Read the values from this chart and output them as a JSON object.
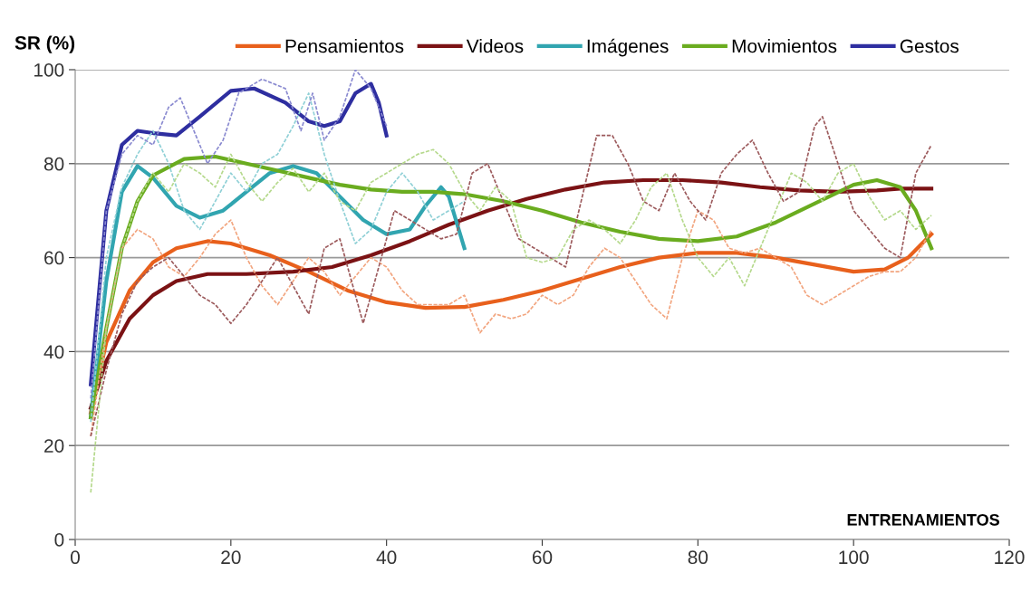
{
  "chart_data": {
    "type": "line",
    "xlabel": "ENTRENAMIENTOS",
    "ylabel": "SR (%)",
    "xlim": [
      0,
      120
    ],
    "xticks": [
      0,
      20,
      40,
      60,
      80,
      100,
      120
    ],
    "ylim": [
      0,
      100
    ],
    "yticks": [
      0,
      20,
      40,
      60,
      80,
      100
    ],
    "grid": "y",
    "legend": "top",
    "marker": "none",
    "series": [
      {
        "name": "Pensamientos",
        "color": "#e8601c",
        "line_style": "solid",
        "x": [
          2,
          4,
          7,
          10,
          13,
          17,
          20,
          25,
          30,
          35,
          40,
          45,
          50,
          55,
          60,
          65,
          70,
          75,
          80,
          85,
          90,
          95,
          100,
          104,
          107,
          110
        ],
        "values": [
          27,
          42,
          53,
          59,
          62,
          63.5,
          63,
          60.5,
          57,
          53,
          50.5,
          49.3,
          49.5,
          51,
          53,
          55.5,
          58,
          60,
          61,
          61,
          60,
          58.5,
          57,
          57.5,
          60,
          65
        ]
      },
      {
        "name": "Videos",
        "color": "#7b1214",
        "line_style": "solid",
        "x": [
          2,
          4,
          7,
          10,
          13,
          17,
          22,
          28,
          33,
          38,
          43,
          48,
          53,
          58,
          63,
          68,
          73,
          78,
          83,
          88,
          93,
          98,
          103,
          106,
          110
        ],
        "values": [
          28,
          38,
          47,
          52,
          55,
          56.5,
          56.5,
          57,
          58,
          60.5,
          63.5,
          67,
          70,
          72.5,
          74.5,
          76,
          76.5,
          76.5,
          76,
          75,
          74.3,
          74,
          74.3,
          74.7,
          74.7
        ]
      },
      {
        "name": "Imágenes",
        "color": "#31a5b0",
        "line_style": "solid",
        "x": [
          2,
          4,
          6,
          8,
          10,
          13,
          16,
          19,
          22,
          25,
          28,
          31,
          34,
          37,
          40,
          43,
          45,
          47,
          48,
          50
        ],
        "values": [
          26,
          55,
          74,
          79.5,
          77,
          71,
          68.5,
          70,
          74,
          78,
          79.5,
          78,
          73,
          68,
          65,
          66,
          71,
          75,
          73,
          62
        ]
      },
      {
        "name": "Movimientos",
        "color": "#6aac1f",
        "line_style": "solid",
        "x": [
          2,
          4,
          6,
          8,
          10,
          14,
          18,
          22,
          26,
          30,
          34,
          38,
          42,
          46,
          50,
          55,
          60,
          65,
          70,
          75,
          80,
          85,
          90,
          95,
          100,
          103,
          106,
          108,
          110
        ],
        "values": [
          26,
          45,
          62,
          72,
          77.5,
          81,
          81.5,
          80,
          78.5,
          77,
          75.5,
          74.5,
          74,
          74,
          73.5,
          72,
          70,
          67.5,
          65.5,
          64,
          63.5,
          64.5,
          67.5,
          71.5,
          75.5,
          76.5,
          75,
          70,
          62
        ]
      },
      {
        "name": "Gestos",
        "color": "#2e2ea0",
        "line_style": "solid",
        "x": [
          2,
          4,
          6,
          8,
          10,
          13,
          16,
          20,
          23,
          27,
          30,
          32,
          34,
          36,
          38,
          39,
          40
        ],
        "values": [
          33,
          70,
          84,
          87,
          86.5,
          86,
          90,
          95.5,
          96,
          93,
          89,
          88,
          89,
          95,
          97,
          93,
          86
        ]
      },
      {
        "color": "#f2a57f",
        "line_style": "dashed",
        "x": [
          2,
          4,
          6,
          8,
          10,
          12,
          14,
          16,
          18,
          20,
          22,
          24,
          26,
          28,
          30,
          32,
          34,
          36,
          38,
          40,
          42,
          44,
          46,
          48,
          50,
          52,
          54,
          56,
          58,
          60,
          62,
          64,
          66,
          68,
          70,
          72,
          74,
          76,
          78,
          80,
          82,
          84,
          86,
          88,
          90,
          92,
          94,
          96,
          98,
          100,
          102,
          104,
          106,
          108,
          110
        ],
        "values": [
          22,
          45,
          62,
          66,
          64,
          58,
          56,
          60,
          65,
          68,
          60,
          54,
          50,
          55,
          60,
          57,
          52,
          56,
          60,
          58,
          53,
          50,
          50,
          50,
          52,
          44,
          48,
          47,
          48,
          52,
          50,
          52,
          58,
          62,
          60,
          55,
          50,
          47,
          60,
          70,
          68,
          62,
          61,
          62,
          60,
          58,
          52,
          50,
          52,
          54,
          56,
          57,
          57,
          60,
          66
        ]
      },
      {
        "color": "#9c5a5c",
        "line_style": "dashed",
        "x": [
          2,
          4,
          6,
          8,
          10,
          12,
          14,
          16,
          18,
          20,
          22,
          24,
          26,
          28,
          30,
          32,
          34,
          36,
          37,
          39,
          41,
          43,
          45,
          47,
          49,
          51,
          53,
          55,
          57,
          59,
          61,
          63,
          65,
          67,
          69,
          71,
          73,
          75,
          77,
          79,
          81,
          83,
          85,
          87,
          89,
          91,
          93,
          95,
          96,
          98,
          100,
          102,
          104,
          106,
          108,
          110
        ],
        "values": [
          22,
          36,
          48,
          55,
          58,
          60,
          56,
          52,
          50,
          46,
          50,
          55,
          60,
          54,
          48,
          62,
          64,
          52,
          46,
          58,
          70,
          68,
          66,
          64,
          65,
          78,
          80,
          72,
          64,
          62,
          60,
          58,
          72,
          86,
          86,
          80,
          72,
          70,
          78,
          72,
          68,
          78,
          82,
          85,
          78,
          72,
          74,
          88,
          90,
          80,
          70,
          66,
          62,
          60,
          78,
          84
        ]
      },
      {
        "color": "#8fd0d6",
        "line_style": "dashed",
        "x": [
          2,
          4,
          6,
          8,
          10,
          12,
          14,
          16,
          18,
          20,
          22,
          24,
          26,
          28,
          30,
          32,
          34,
          36,
          38,
          40,
          42,
          44,
          46,
          48,
          50
        ],
        "values": [
          25,
          60,
          75,
          82,
          87,
          80,
          70,
          66,
          72,
          78,
          74,
          80,
          82,
          88,
          95,
          82,
          72,
          63,
          66,
          74,
          78,
          74,
          68,
          70,
          72
        ]
      },
      {
        "color": "#b5d98c",
        "line_style": "dashed",
        "x": [
          2,
          4,
          6,
          8,
          10,
          12,
          14,
          16,
          18,
          20,
          22,
          24,
          26,
          28,
          30,
          32,
          34,
          36,
          38,
          40,
          42,
          44,
          46,
          48,
          50,
          52,
          54,
          56,
          58,
          60,
          62,
          64,
          66,
          68,
          70,
          72,
          74,
          76,
          78,
          80,
          82,
          84,
          86,
          88,
          90,
          92,
          94,
          96,
          98,
          100,
          102,
          104,
          106,
          108,
          110
        ],
        "values": [
          10,
          45,
          62,
          72,
          78,
          74,
          80,
          78,
          75,
          82,
          76,
          72,
          76,
          79,
          74,
          78,
          72,
          70,
          76,
          78,
          80,
          82,
          83,
          80,
          74,
          70,
          75,
          72,
          60,
          59,
          60,
          66,
          68,
          66,
          63,
          68,
          75,
          78,
          68,
          60,
          56,
          60,
          54,
          62,
          70,
          78,
          76,
          72,
          78,
          80,
          73,
          68,
          70,
          66,
          69
        ]
      },
      {
        "color": "#8a8ad0",
        "line_style": "dashed",
        "x": [
          2,
          4,
          6,
          8,
          10,
          12,
          13.5,
          15,
          17,
          19,
          21,
          24,
          27,
          29,
          30.5,
          32,
          34,
          36,
          38,
          40
        ],
        "values": [
          30,
          70,
          82,
          86,
          84,
          92,
          94,
          88,
          80,
          85,
          95,
          98,
          96,
          87,
          95,
          85,
          90,
          100,
          96,
          88
        ]
      }
    ]
  }
}
